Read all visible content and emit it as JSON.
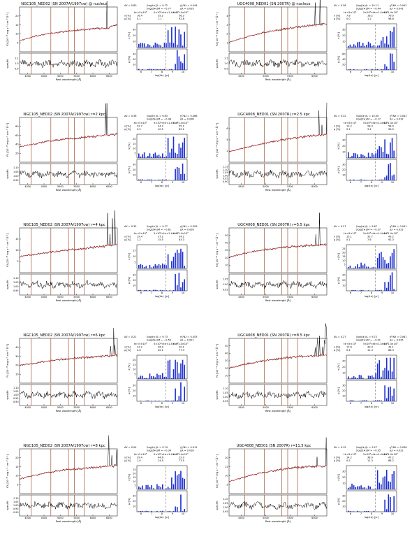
{
  "colors": {
    "spectrum": "#000000",
    "model": "#cc1f1f",
    "emission_line": "#a0522d",
    "bar": "#1c2fd0",
    "axes": "#000000"
  },
  "axis_labels": {
    "flux_ylabel": "Fλ [10⁻¹⁶ erg s⁻¹ cm⁻² Å⁻¹]",
    "ratio_ylabel": "spec/fit",
    "wave_xlabel": "Rest wavelength [Å]",
    "x_pct": "x [%]",
    "mu_pct": "μ [%]",
    "age_xlabel": "log(t∗) [yr]"
  },
  "stat_labels": {
    "x_row": "x [%]",
    "mu_row": "μ [%]",
    "age_bins": [
      "t∗<5×10⁸",
      "5×10⁸<t∗<1.4×10⁹",
      "t∗>1.4×10⁹"
    ]
  },
  "panels": [
    {
      "title": "NGC105_NED02 (SN 2007A/1997cw) @ nucleus",
      "av": "0.80",
      "logt": "9.72",
      "logz": "−0.77",
      "chi": "0.044",
      "adev": "0.029",
      "x": [
        "16.4",
        "35.2",
        "56.3"
      ],
      "mu": [
        "0.1",
        "7.1",
        "92.8"
      ],
      "flux_ticks": [
        "5",
        "10",
        "15",
        "20"
      ],
      "ratio_ticks": [
        "0.9",
        "1.0",
        "1.1"
      ],
      "wave_ticks": [
        "4000",
        "4500",
        "5000",
        "5500",
        "6000",
        "6500"
      ],
      "age_ticks": [
        "6",
        "7",
        "8",
        "9",
        "10"
      ],
      "x_ticks": [
        "10",
        "20",
        "30"
      ],
      "mu_ticks": [
        "10",
        "20",
        "30"
      ]
    },
    {
      "title": "UGC4008_NED01 (SN 2007R) @ nucleus",
      "av": "0.36",
      "logt": "10.11",
      "logz": "−0.44",
      "chi": "0.042",
      "adev": "0.041",
      "x": [
        "7.8",
        "16.2",
        "76.0"
      ],
      "mu": [
        "0.0",
        "1.2",
        "98.8"
      ],
      "flux_ticks": [
        "1",
        "2",
        "3",
        "4"
      ],
      "ratio_ticks": [
        "0.9",
        "1.0",
        "1.1"
      ],
      "wave_ticks": [
        "4500",
        "5000",
        "5500",
        "6000"
      ],
      "age_ticks": [
        "6",
        "7",
        "8",
        "9",
        "10"
      ],
      "x_ticks": [
        "10",
        "20",
        "30"
      ],
      "mu_ticks": [
        "20",
        "40",
        "60"
      ]
    },
    {
      "title": "NGC105_NED02 (SN 2007A/1997cw) r=2 kpc",
      "av": "0.36",
      "logt": "9.83",
      "logz": "−0.46",
      "chi": "0.066",
      "adev": "0.038",
      "x": [
        "22.7",
        "34.2",
        "55.1"
      ],
      "mu": [
        "0.5",
        "10.5",
        "89.1"
      ],
      "flux_ticks": [
        "20",
        "40",
        "60",
        "80"
      ],
      "ratio_ticks": [
        "0.95",
        "1.00",
        "1.05",
        "1.10"
      ],
      "wave_ticks": [
        "4000",
        "4500",
        "5000",
        "5500",
        "6000",
        "6500"
      ],
      "age_ticks": [
        "6",
        "7",
        "8",
        "9",
        "10"
      ],
      "x_ticks": [
        "5",
        "10",
        "15",
        "20"
      ],
      "mu_ticks": [
        "10",
        "20",
        "30"
      ]
    },
    {
      "title": "UGC4008_NED01 (SN 2007R) r=2.5 kpc",
      "av": "0.32",
      "logt": "10.00",
      "logz": "−0.17",
      "chi": "0.043",
      "adev": "0.032",
      "x": [
        "13.2",
        "28.3",
        "58.9"
      ],
      "mu": [
        "0.1",
        "3.4",
        "96.5"
      ],
      "flux_ticks": [
        "2",
        "4",
        "6"
      ],
      "ratio_ticks": [
        "0.90",
        "0.95",
        "1.00",
        "1.05",
        "1.10",
        "1.15"
      ],
      "wave_ticks": [
        "4500",
        "5000",
        "5500",
        "6000"
      ],
      "age_ticks": [
        "6",
        "7",
        "8",
        "9",
        "10"
      ],
      "x_ticks": [
        "10",
        "20",
        "30"
      ],
      "mu_ticks": [
        "10",
        "20",
        "30"
      ]
    },
    {
      "title": "NGC105_NED02 (SN 2007A/1997cw) r=4 kpc",
      "av": "0.35",
      "logt": "9.77",
      "logz": "−0.61",
      "chi": "0.059",
      "adev": "0.026",
      "x": [
        "19.4",
        "37.2",
        "34.2"
      ],
      "mu": [
        "1.2",
        "15.5",
        "83.3"
      ],
      "flux_ticks": [
        "5",
        "10",
        "15"
      ],
      "ratio_ticks": [
        "0.95",
        "1.00",
        "1.05",
        "1.10"
      ],
      "wave_ticks": [
        "4000",
        "4500",
        "5000",
        "5500",
        "6000",
        "6500"
      ],
      "age_ticks": [
        "6",
        "7",
        "8",
        "9",
        "10"
      ],
      "x_ticks": [
        "5",
        "10",
        "15"
      ],
      "mu_ticks": [
        "10",
        "20",
        "30"
      ]
    },
    {
      "title": "UGC4008_NED01 (SN 2007R) r=5.5 kpc",
      "av": "0.27",
      "logt": "9.87",
      "logz": "−0.37",
      "chi": "0.041",
      "adev": "0.021",
      "x": [
        "15.1",
        "32.7",
        "43.2"
      ],
      "mu": [
        "0.1",
        "7.6",
        "92.3"
      ],
      "flux_ticks": [
        "10",
        "20",
        "30",
        "40",
        "50"
      ],
      "ratio_ticks": [
        "0.95",
        "1.00",
        "1.05"
      ],
      "wave_ticks": [
        "4500",
        "5000",
        "5500",
        "6000"
      ],
      "age_ticks": [
        "6",
        "7",
        "8",
        "9",
        "10"
      ],
      "x_ticks": [
        "5",
        "10",
        "15",
        "20",
        "25"
      ],
      "mu_ticks": [
        "10",
        "20",
        "30"
      ]
    },
    {
      "title": "NGC105_NED02 (SN 2007A/1997cw) r=6 kpc",
      "av": "0.21",
      "logt": "9.73",
      "logz": "−0.50",
      "chi": "0.053",
      "adev": "0.021",
      "x": [
        "41.2",
        "36.9",
        "20.1"
      ],
      "mu": [
        "2.6",
        "20.1",
        "77.3"
      ],
      "flux_ticks": [
        "10",
        "20",
        "30",
        "40"
      ],
      "ratio_ticks": [
        "0.90",
        "0.95",
        "1.00",
        "1.05",
        "1.10"
      ],
      "wave_ticks": [
        "4000",
        "4500",
        "5000",
        "5500",
        "6000",
        "6500"
      ],
      "age_ticks": [
        "6",
        "7",
        "8",
        "9",
        "10"
      ],
      "x_ticks": [
        "5",
        "10",
        "15",
        "20"
      ],
      "mu_ticks": [
        "10",
        "20",
        "30"
      ]
    },
    {
      "title": "UGC4008_NED01 (SN 2007R) r=8.5 kpc",
      "av": "0.27",
      "logt": "9.72",
      "logz": "−0.91",
      "chi": "0.061",
      "adev": "0.025",
      "x": [
        "17.6",
        "39.3",
        "41.1"
      ],
      "mu": [
        "0.4",
        "11.3",
        "88.3"
      ],
      "flux_ticks": [
        "10",
        "20",
        "30",
        "40",
        "50"
      ],
      "ratio_ticks": [
        "0.95",
        "1.00",
        "1.05",
        "1.10"
      ],
      "wave_ticks": [
        "4500",
        "5000",
        "5500",
        "6000"
      ],
      "age_ticks": [
        "6",
        "7",
        "8",
        "9",
        "10"
      ],
      "x_ticks": [
        "10",
        "20",
        "30"
      ],
      "mu_ticks": [
        "10",
        "20",
        "30"
      ]
    },
    {
      "title": "NGC105_NED02 (SN 2007A/1997cw) r=8 kpc",
      "av": "0.04",
      "logt": "9.74",
      "logz": "−0.34",
      "chi": "0.011",
      "adev": "0.018",
      "x": [
        "29.4",
        "44.6",
        "22.0"
      ],
      "mu": [
        "1.0",
        "24.5",
        "73.5"
      ],
      "flux_ticks": [
        "5",
        "10",
        "15",
        "20"
      ],
      "ratio_ticks": [
        "0.90",
        "0.95",
        "1.00",
        "1.05",
        "1.10"
      ],
      "wave_ticks": [
        "4000",
        "4500",
        "5000",
        "5500",
        "6000",
        "6500"
      ],
      "age_ticks": [
        "6",
        "7",
        "8",
        "9",
        "10"
      ],
      "x_ticks": [
        "5",
        "10",
        "15",
        "20",
        "25"
      ],
      "mu_ticks": [
        "10",
        "20",
        "30"
      ]
    },
    {
      "title": "UGC4008_NED01 (SN 2007R) r=11.5 kpc",
      "av": "0.15",
      "logt": "9.27",
      "logz": "−0.95",
      "chi": "0.036",
      "adev": "0.022",
      "x": [
        "14.2",
        "38.0",
        "47.2"
      ],
      "mu": [
        "0.5",
        "11.3",
        "88.2"
      ],
      "flux_ticks": [
        "5",
        "10",
        "15",
        "20"
      ],
      "ratio_ticks": [
        "0.95",
        "1.00",
        "1.05",
        "1.10"
      ],
      "wave_ticks": [
        "4500",
        "5000",
        "5500",
        "6000"
      ],
      "age_ticks": [
        "6",
        "7",
        "8",
        "9",
        "10"
      ],
      "x_ticks": [
        "10",
        "20",
        "30"
      ],
      "mu_ticks": [
        "10",
        "20",
        "30"
      ]
    }
  ],
  "chart_data": [
    {
      "type": "line",
      "title": "NGC105_NED02 (SN 2007A/1997cw) @ nucleus",
      "x": [
        3800,
        4000,
        4500,
        5000,
        5500,
        6000,
        6500,
        6800
      ],
      "series": [
        {
          "values": [
            5,
            6,
            8,
            9,
            10,
            10.5,
            11,
            13
          ]
        }
      ]
    },
    {
      "type": "line",
      "title": "UGC4008_NED01 (SN 2007R) @ nucleus",
      "x": [
        4000,
        4500,
        5000,
        5500,
        6000,
        6500
      ],
      "series": [
        {
          "values": [
            1.2,
            2.0,
            2.6,
            3.0,
            3.3,
            3.6
          ]
        }
      ]
    },
    {
      "type": "line",
      "title": "NGC105_NED02 (SN 2007A/1997cw) r=2 kpc",
      "x": [
        3800,
        4500,
        5000,
        5500,
        6000,
        6500
      ],
      "series": [
        {
          "values": [
            30,
            40,
            45,
            48,
            52,
            55
          ]
        }
      ]
    },
    {
      "type": "line",
      "title": "UGC4008_NED01 (SN 2007R) r=2.5 kpc",
      "x": [
        4000,
        4500,
        5000,
        5500,
        6000,
        6500
      ],
      "series": [
        {
          "values": [
            2.0,
            3.0,
            3.8,
            4.5,
            5.0,
            5.4
          ]
        }
      ]
    },
    {
      "type": "line",
      "title": "NGC105_NED02 (SN 2007A/1997cw) r=4 kpc",
      "x": [
        3800,
        4500,
        5000,
        5500,
        6000,
        6500
      ],
      "series": [
        {
          "values": [
            4,
            5,
            5.5,
            6,
            6.5,
            7
          ]
        }
      ]
    },
    {
      "type": "line",
      "title": "UGC4008_NED01 (SN 2007R) r=5.5 kpc",
      "x": [
        4000,
        4500,
        5000,
        5500,
        6000,
        6500
      ],
      "series": [
        {
          "values": [
            20,
            26,
            30,
            33,
            35,
            36
          ]
        }
      ]
    },
    {
      "type": "line",
      "title": "NGC105_NED02 (SN 2007A/1997cw) r=6 kpc",
      "x": [
        3800,
        4500,
        5000,
        5500,
        6000,
        6500
      ],
      "series": [
        {
          "values": [
            14,
            17,
            19,
            20,
            21,
            22
          ]
        }
      ]
    },
    {
      "type": "line",
      "title": "UGC4008_NED01 (SN 2007R) r=8.5 kpc",
      "x": [
        4000,
        4500,
        5000,
        5500,
        6000,
        6500
      ],
      "series": [
        {
          "values": [
            18,
            24,
            28,
            31,
            33,
            34
          ]
        }
      ]
    },
    {
      "type": "line",
      "title": "NGC105_NED02 (SN 2007A/1997cw) r=8 kpc",
      "x": [
        3800,
        4500,
        5000,
        5500,
        6000,
        6500
      ],
      "series": [
        {
          "values": [
            5,
            7,
            8,
            8.5,
            9,
            9.5
          ]
        }
      ]
    },
    {
      "type": "line",
      "title": "UGC4008_NED01 (SN 2007R) r=11.5 kpc",
      "x": [
        4000,
        4500,
        5000,
        5500,
        6000,
        6500
      ],
      "series": [
        {
          "values": [
            6,
            9,
            11,
            12.5,
            13.5,
            14
          ]
        }
      ]
    }
  ]
}
